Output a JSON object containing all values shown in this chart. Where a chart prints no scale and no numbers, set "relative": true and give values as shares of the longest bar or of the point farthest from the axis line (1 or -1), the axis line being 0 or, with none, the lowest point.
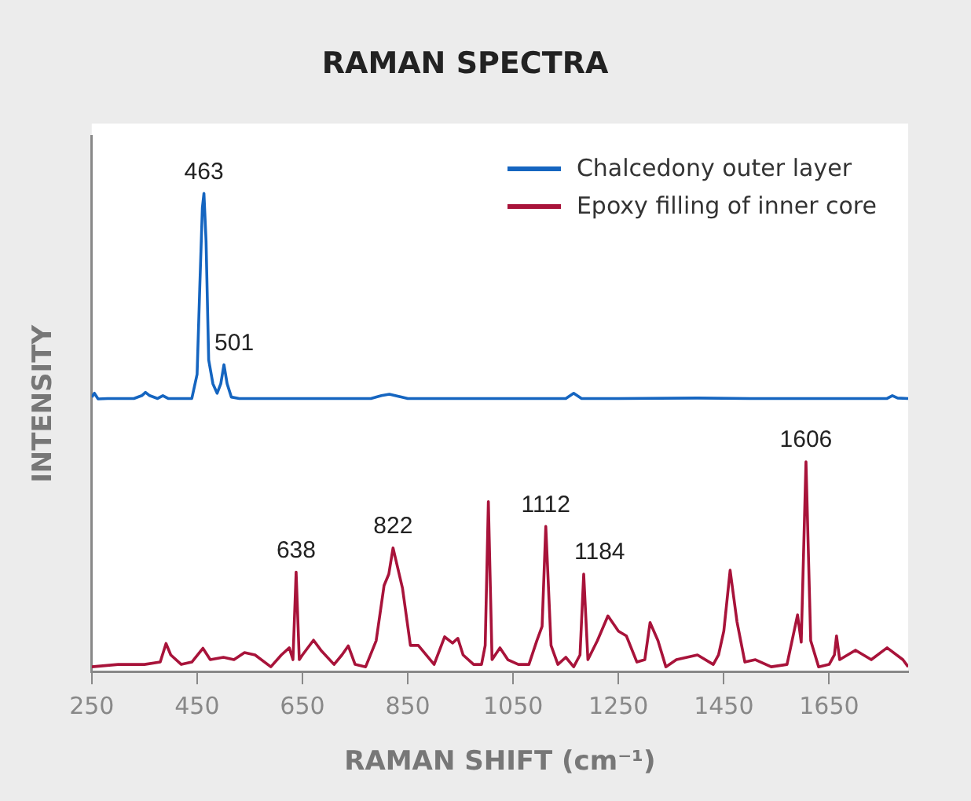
{
  "chart_data": {
    "type": "line",
    "title": "RAMAN SPECTRA",
    "xlabel": "RAMAN SHIFT (cm⁻¹)",
    "ylabel": "INTENSITY",
    "relative": true,
    "xlim": [
      250,
      1800
    ],
    "xticks": [
      250,
      450,
      650,
      850,
      1050,
      1250,
      1450,
      1650
    ],
    "grid": false,
    "legend": "top right",
    "marker": "none",
    "line_style": "solid",
    "series": [
      {
        "name": "Chalcedony outer layer",
        "color": "#1565c0",
        "x": [
          250,
          255,
          262,
          280,
          330,
          345,
          352,
          360,
          375,
          385,
          395,
          410,
          440,
          450,
          455,
          460,
          463,
          467,
          472,
          480,
          488,
          495,
          501,
          507,
          515,
          530,
          600,
          700,
          780,
          800,
          815,
          850,
          950,
          1050,
          1120,
          1150,
          1165,
          1180,
          1250,
          1400,
          1500,
          1600,
          1700,
          1760,
          1770,
          1780,
          1800
        ],
        "values": [
          0.572,
          0.58,
          0.568,
          0.569,
          0.569,
          0.575,
          0.582,
          0.575,
          0.569,
          0.575,
          0.569,
          0.569,
          0.569,
          0.62,
          0.8,
          0.97,
          1.0,
          0.9,
          0.65,
          0.6,
          0.58,
          0.6,
          0.64,
          0.6,
          0.572,
          0.569,
          0.569,
          0.569,
          0.569,
          0.575,
          0.578,
          0.569,
          0.569,
          0.569,
          0.569,
          0.569,
          0.58,
          0.569,
          0.569,
          0.57,
          0.569,
          0.569,
          0.569,
          0.569,
          0.575,
          0.57,
          0.569
        ]
      },
      {
        "name": "Epoxy filling of inner core",
        "color": "#a8133a",
        "x": [
          250,
          300,
          350,
          380,
          391,
          400,
          420,
          440,
          461,
          475,
          500,
          520,
          540,
          560,
          590,
          610,
          625,
          632,
          638,
          644,
          650,
          671,
          685,
          710,
          725,
          737,
          750,
          770,
          790,
          805,
          814,
          822,
          840,
          855,
          870,
          900,
          920,
          935,
          945,
          955,
          975,
          990,
          997,
          1003,
          1010,
          1025,
          1040,
          1060,
          1080,
          1095,
          1105,
          1112,
          1122,
          1135,
          1150,
          1165,
          1177,
          1184,
          1192,
          1210,
          1230,
          1250,
          1265,
          1285,
          1300,
          1310,
          1325,
          1340,
          1360,
          1400,
          1430,
          1440,
          1450,
          1462,
          1475,
          1490,
          1510,
          1540,
          1570,
          1590,
          1597,
          1606,
          1615,
          1630,
          1650,
          1660,
          1664,
          1670,
          1700,
          1730,
          1760,
          1790,
          1800
        ],
        "values": [
          0.005,
          0.01,
          0.01,
          0.015,
          0.054,
          0.03,
          0.01,
          0.015,
          0.044,
          0.02,
          0.025,
          0.02,
          0.035,
          0.03,
          0.005,
          0.03,
          0.045,
          0.02,
          0.204,
          0.02,
          0.03,
          0.061,
          0.04,
          0.01,
          0.03,
          0.049,
          0.01,
          0.005,
          0.06,
          0.176,
          0.2,
          0.255,
          0.17,
          0.05,
          0.05,
          0.01,
          0.068,
          0.055,
          0.065,
          0.03,
          0.01,
          0.01,
          0.05,
          0.352,
          0.02,
          0.045,
          0.02,
          0.01,
          0.01,
          0.06,
          0.09,
          0.3,
          0.05,
          0.01,
          0.025,
          0.005,
          0.03,
          0.2,
          0.02,
          0.06,
          0.112,
          0.08,
          0.07,
          0.015,
          0.02,
          0.098,
          0.06,
          0.005,
          0.02,
          0.03,
          0.01,
          0.03,
          0.08,
          0.208,
          0.1,
          0.015,
          0.02,
          0.005,
          0.01,
          0.114,
          0.057,
          0.436,
          0.06,
          0.005,
          0.01,
          0.03,
          0.07,
          0.02,
          0.04,
          0.02,
          0.045,
          0.02,
          0.005
        ]
      }
    ],
    "annotations": [
      {
        "text": "463",
        "x": 463,
        "y": 1.0
      },
      {
        "text": "501",
        "x": 501,
        "y": 0.64
      },
      {
        "text": "638",
        "x": 638,
        "y": 0.204
      },
      {
        "text": "822",
        "x": 822,
        "y": 0.255
      },
      {
        "text": "1112",
        "x": 1112,
        "y": 0.3
      },
      {
        "text": "1184",
        "x": 1184,
        "y": 0.2
      },
      {
        "text": "1606",
        "x": 1606,
        "y": 0.436
      }
    ]
  }
}
